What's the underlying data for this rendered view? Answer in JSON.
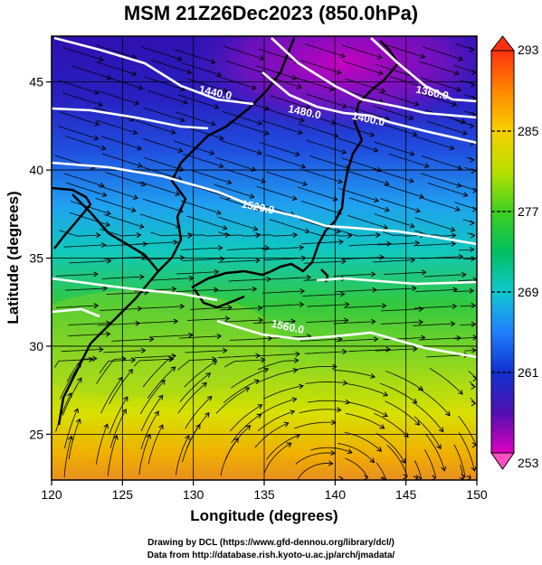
{
  "title": "MSM 21Z26Dec2023 (850.0hPa)",
  "map": {
    "xlabel": "Longitude (degrees)",
    "ylabel": "Latitude  (degrees)",
    "lon_range": [
      120,
      150
    ],
    "lat_range": [
      22.4,
      47.6
    ],
    "x_ticks": [
      "120",
      "125",
      "130",
      "135",
      "140",
      "145",
      "150"
    ],
    "y_ticks": [
      "25",
      "30",
      "35",
      "40",
      "45"
    ],
    "y_tick_values": [
      25,
      30,
      35,
      40,
      45
    ],
    "shading": "temperature (K)",
    "overlays": [
      "geopotential height contours (white)",
      "streamlines (black)",
      "coastlines",
      "lat/lon grid"
    ]
  },
  "contours": [
    {
      "label": "1440.0",
      "lon": 131.5,
      "lat": 44.2
    },
    {
      "label": "1480.0",
      "lon": 137.8,
      "lat": 43.1
    },
    {
      "label": "1400.0",
      "lon": 142.3,
      "lat": 42.7
    },
    {
      "label": "1360.0",
      "lon": 146.8,
      "lat": 44.2
    },
    {
      "label": "1520.0",
      "lon": 134.5,
      "lat": 37.7
    },
    {
      "label": "1560.0",
      "lon": 136.6,
      "lat": 30.9
    }
  ],
  "colorbar": {
    "min": 253,
    "max": 293,
    "ticks": [
      "293",
      "285",
      "277",
      "269",
      "261",
      "253"
    ],
    "tick_values": [
      293,
      285,
      277,
      269,
      261,
      253
    ],
    "colors": [
      "#b000d0",
      "#d000c0",
      "#1010c0",
      "#2040e0",
      "#20a0ff",
      "#10d0c8",
      "#00c040",
      "#40d020",
      "#b0e000",
      "#f0f000",
      "#ffc000",
      "#ff8000",
      "#ff3000"
    ]
  },
  "footer": {
    "line1": "Drawing by DCL (https://www.gfd-dennou.org/library/dcl/)",
    "line2": "Data from http://database.rish.kyoto-u.ac.jp/arch/jmadata/"
  }
}
